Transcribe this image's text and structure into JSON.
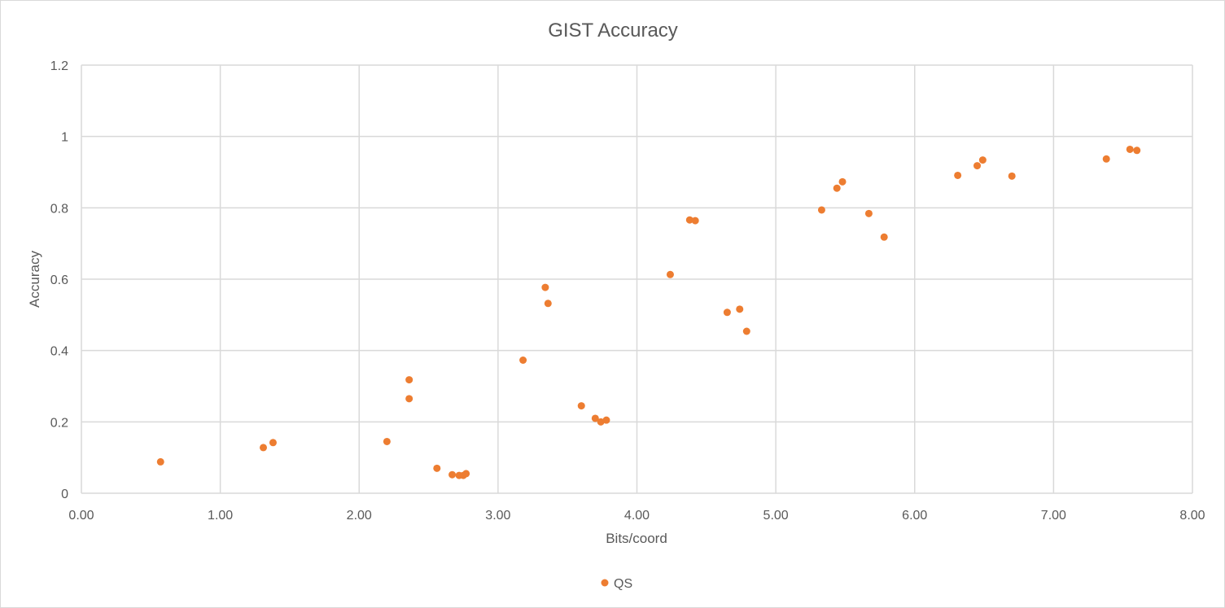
{
  "chart_data": {
    "type": "scatter",
    "title": "GIST Accuracy",
    "xlabel": "Bits/coord",
    "ylabel": "Accuracy",
    "xlim": [
      0,
      8
    ],
    "ylim": [
      0,
      1.2
    ],
    "x_ticks": [
      "0.00",
      "1.00",
      "2.00",
      "3.00",
      "4.00",
      "5.00",
      "6.00",
      "7.00",
      "8.00"
    ],
    "y_ticks": [
      "0",
      "0.2",
      "0.4",
      "0.6",
      "0.8",
      "1",
      "1.2"
    ],
    "grid": true,
    "legend_position": "bottom",
    "series": [
      {
        "name": "QS",
        "color": "#ed7d31",
        "points": [
          {
            "x": 0.57,
            "y": 0.088
          },
          {
            "x": 1.31,
            "y": 0.128
          },
          {
            "x": 1.38,
            "y": 0.142
          },
          {
            "x": 2.2,
            "y": 0.145
          },
          {
            "x": 2.36,
            "y": 0.318
          },
          {
            "x": 2.36,
            "y": 0.265
          },
          {
            "x": 2.56,
            "y": 0.07
          },
          {
            "x": 2.67,
            "y": 0.052
          },
          {
            "x": 2.72,
            "y": 0.05
          },
          {
            "x": 2.75,
            "y": 0.05
          },
          {
            "x": 2.77,
            "y": 0.055
          },
          {
            "x": 3.18,
            "y": 0.373
          },
          {
            "x": 3.34,
            "y": 0.577
          },
          {
            "x": 3.36,
            "y": 0.532
          },
          {
            "x": 3.6,
            "y": 0.245
          },
          {
            "x": 3.7,
            "y": 0.21
          },
          {
            "x": 3.74,
            "y": 0.2
          },
          {
            "x": 3.78,
            "y": 0.205
          },
          {
            "x": 4.24,
            "y": 0.613
          },
          {
            "x": 4.38,
            "y": 0.766
          },
          {
            "x": 4.42,
            "y": 0.764
          },
          {
            "x": 4.65,
            "y": 0.507
          },
          {
            "x": 4.74,
            "y": 0.516
          },
          {
            "x": 4.79,
            "y": 0.454
          },
          {
            "x": 5.33,
            "y": 0.794
          },
          {
            "x": 5.44,
            "y": 0.855
          },
          {
            "x": 5.48,
            "y": 0.873
          },
          {
            "x": 5.67,
            "y": 0.784
          },
          {
            "x": 5.78,
            "y": 0.718
          },
          {
            "x": 6.31,
            "y": 0.891
          },
          {
            "x": 6.45,
            "y": 0.918
          },
          {
            "x": 6.49,
            "y": 0.934
          },
          {
            "x": 6.7,
            "y": 0.889
          },
          {
            "x": 7.38,
            "y": 0.937
          },
          {
            "x": 7.55,
            "y": 0.964
          },
          {
            "x": 7.6,
            "y": 0.961
          }
        ]
      }
    ]
  }
}
